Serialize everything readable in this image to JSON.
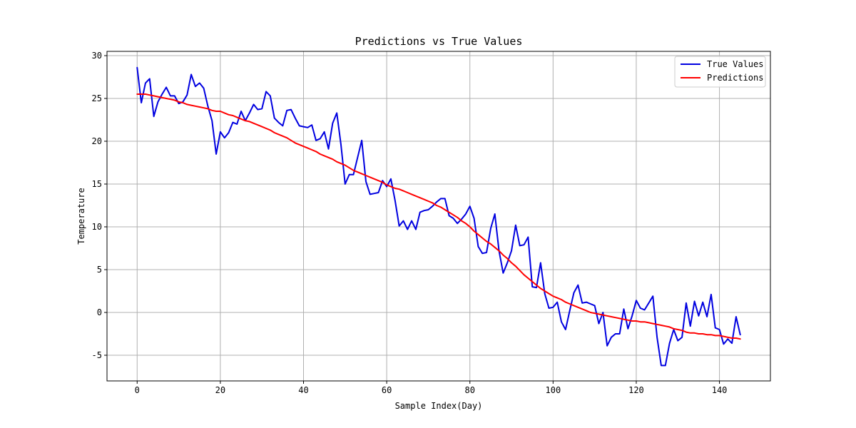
{
  "chart_data": {
    "type": "line",
    "title": "Predictions vs True Values",
    "xlabel": "Sample Index(Day)",
    "ylabel": "Temperature",
    "xlim": [
      -7.25,
      152.25
    ],
    "ylim": [
      -8,
      30.5
    ],
    "xticks": [
      0,
      20,
      40,
      60,
      80,
      100,
      120,
      140
    ],
    "yticks": [
      -5,
      0,
      5,
      10,
      15,
      20,
      25,
      30
    ],
    "grid": true,
    "legend_position": "top-right",
    "series": [
      {
        "name": "True Values",
        "color": "#0000e0",
        "values": [
          28.6,
          24.5,
          26.8,
          27.3,
          22.9,
          24.6,
          25.5,
          26.3,
          25.3,
          25.3,
          24.4,
          24.6,
          25.4,
          27.8,
          26.4,
          26.8,
          26.2,
          24.1,
          22.4,
          18.5,
          21.1,
          20.4,
          21.0,
          22.2,
          22.0,
          23.5,
          22.4,
          23.3,
          24.3,
          23.7,
          23.8,
          25.8,
          25.3,
          22.7,
          22.2,
          21.8,
          23.6,
          23.7,
          22.7,
          21.8,
          21.7,
          21.6,
          21.9,
          20.1,
          20.3,
          21.1,
          19.1,
          22.1,
          23.3,
          19.6,
          15.0,
          16.1,
          16.1,
          18.1,
          20.1,
          15.3,
          13.8,
          13.9,
          14.0,
          15.4,
          14.7,
          15.6,
          13.1,
          10.1,
          10.7,
          9.7,
          10.7,
          9.7,
          11.7,
          11.9,
          12.0,
          12.4,
          12.9,
          13.3,
          13.3,
          11.3,
          11.0,
          10.4,
          10.9,
          11.5,
          12.4,
          11.0,
          7.7,
          6.9,
          7.0,
          9.8,
          11.5,
          7.2,
          4.6,
          5.8,
          7.2,
          10.2,
          7.8,
          7.9,
          8.8,
          3.0,
          2.9,
          5.8,
          2.2,
          0.5,
          0.6,
          1.2,
          -1.1,
          -2.0,
          0.2,
          2.3,
          3.2,
          1.1,
          1.2,
          1.0,
          0.8,
          -1.3,
          0.0,
          -3.9,
          -2.9,
          -2.5,
          -2.5,
          0.4,
          -1.9,
          -0.4,
          1.4,
          0.5,
          0.3,
          1.1,
          1.9,
          -2.9,
          -6.2,
          -6.2,
          -3.6,
          -2.0,
          -3.3,
          -2.9,
          1.1,
          -1.6,
          1.3,
          -0.4,
          1.2,
          -0.5,
          2.1,
          -1.8,
          -2.0,
          -3.7,
          -3.1,
          -3.6,
          -0.5,
          -2.6
        ]
      },
      {
        "name": "Predictions",
        "color": "#ff0000",
        "values": [
          25.5,
          25.5,
          25.5,
          25.4,
          25.3,
          25.2,
          25.1,
          25.0,
          24.9,
          24.8,
          24.6,
          24.5,
          24.3,
          24.2,
          24.1,
          24.0,
          23.9,
          23.8,
          23.6,
          23.5,
          23.5,
          23.3,
          23.1,
          23.0,
          22.8,
          22.6,
          22.4,
          22.3,
          22.1,
          21.9,
          21.7,
          21.5,
          21.3,
          21.0,
          20.8,
          20.6,
          20.4,
          20.1,
          19.8,
          19.6,
          19.4,
          19.2,
          19.0,
          18.8,
          18.5,
          18.3,
          18.1,
          17.9,
          17.6,
          17.4,
          17.2,
          16.9,
          16.6,
          16.4,
          16.2,
          16.0,
          15.8,
          15.6,
          15.4,
          15.2,
          14.9,
          14.7,
          14.5,
          14.4,
          14.2,
          14.0,
          13.8,
          13.6,
          13.4,
          13.2,
          13.0,
          12.8,
          12.5,
          12.3,
          12.0,
          11.7,
          11.4,
          11.1,
          10.7,
          10.4,
          10.0,
          9.5,
          9.1,
          8.7,
          8.3,
          8.0,
          7.6,
          7.2,
          6.7,
          6.3,
          5.8,
          5.4,
          4.9,
          4.4,
          4.0,
          3.6,
          3.2,
          2.8,
          2.5,
          2.2,
          1.9,
          1.7,
          1.5,
          1.2,
          1.0,
          0.8,
          0.6,
          0.4,
          0.2,
          0.0,
          -0.1,
          -0.2,
          -0.3,
          -0.4,
          -0.5,
          -0.6,
          -0.7,
          -0.8,
          -0.9,
          -1.0,
          -1.0,
          -1.1,
          -1.1,
          -1.2,
          -1.3,
          -1.4,
          -1.5,
          -1.6,
          -1.7,
          -1.9,
          -2.0,
          -2.1,
          -2.3,
          -2.4,
          -2.4,
          -2.5,
          -2.5,
          -2.6,
          -2.6,
          -2.7,
          -2.7,
          -2.8,
          -2.9,
          -3.0,
          -3.0,
          -3.1
        ]
      }
    ]
  }
}
